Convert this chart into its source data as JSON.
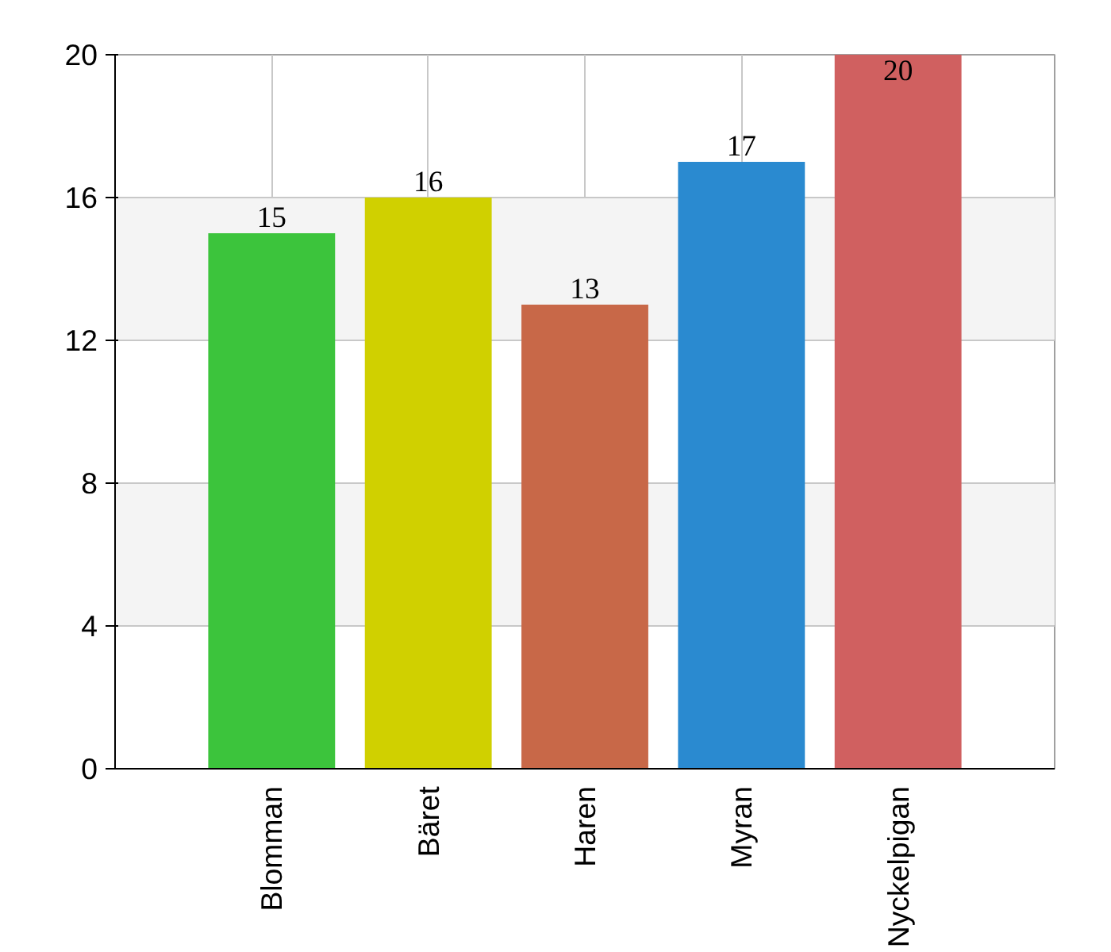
{
  "chart_data": {
    "type": "bar",
    "categories": [
      "Blomman",
      "Bäret",
      "Haren",
      "Myran",
      "Nyckelpigan"
    ],
    "values": [
      15,
      16,
      13,
      17,
      20
    ],
    "colors": [
      "#3cc43c",
      "#d0d000",
      "#c86848",
      "#2a8ad0",
      "#d06060"
    ],
    "ylim": [
      0,
      20
    ],
    "yticks": [
      0,
      4,
      8,
      12,
      16,
      20
    ],
    "grid": true,
    "data_labels": true
  }
}
